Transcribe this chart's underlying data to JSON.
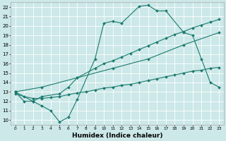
{
  "xlabel": "Humidex (Indice chaleur)",
  "xlim": [
    -0.5,
    23.5
  ],
  "ylim": [
    9.5,
    22.5
  ],
  "yticks": [
    10,
    11,
    12,
    13,
    14,
    15,
    16,
    17,
    18,
    19,
    20,
    21,
    22
  ],
  "xticks": [
    0,
    1,
    2,
    3,
    4,
    5,
    6,
    7,
    8,
    9,
    10,
    11,
    12,
    13,
    14,
    15,
    16,
    17,
    18,
    19,
    20,
    21,
    22,
    23
  ],
  "bg_color": "#cce8e8",
  "line_color": "#1a7a6e",
  "grid_color": "#ffffff",
  "line1_x": [
    0,
    1,
    2,
    3,
    4,
    5,
    6,
    7,
    9,
    10,
    11,
    12,
    14,
    15,
    16,
    17,
    19,
    20,
    21,
    22,
    23
  ],
  "line1_y": [
    13,
    12,
    12,
    11.5,
    11,
    9.8,
    10.3,
    12.2,
    16.5,
    20.3,
    20.5,
    20.3,
    22.1,
    22.2,
    21.6,
    21.6,
    19.3,
    19.0,
    16.5,
    14.0,
    13.5
  ],
  "line2_x": [
    0,
    2,
    3,
    5,
    6,
    7,
    9,
    10,
    11,
    12,
    13,
    14,
    15,
    16,
    17,
    18,
    19,
    20,
    21,
    22,
    23
  ],
  "line2_y": [
    13,
    12,
    12.5,
    12.8,
    13.5,
    14.5,
    15.5,
    16.0,
    16.3,
    16.7,
    17.1,
    17.5,
    17.9,
    18.3,
    18.7,
    19.1,
    19.4,
    19.8,
    20.1,
    20.4,
    20.7
  ],
  "line3_x": [
    0,
    3,
    7,
    11,
    15,
    19,
    23
  ],
  "line3_y": [
    13,
    13.5,
    14.5,
    15.5,
    16.5,
    18.0,
    19.3
  ],
  "line4_x": [
    0,
    1,
    2,
    3,
    4,
    5,
    6,
    7,
    8,
    9,
    10,
    11,
    12,
    13,
    14,
    15,
    16,
    17,
    18,
    19,
    20,
    21,
    22,
    23
  ],
  "line4_y": [
    12.8,
    12.5,
    12.3,
    12.3,
    12.4,
    12.5,
    12.7,
    12.9,
    13.0,
    13.2,
    13.4,
    13.5,
    13.7,
    13.8,
    14.0,
    14.2,
    14.4,
    14.6,
    14.8,
    15.0,
    15.2,
    15.3,
    15.5,
    15.6
  ],
  "tick_fontsize": 5.5,
  "xlabel_fontsize": 6.5
}
